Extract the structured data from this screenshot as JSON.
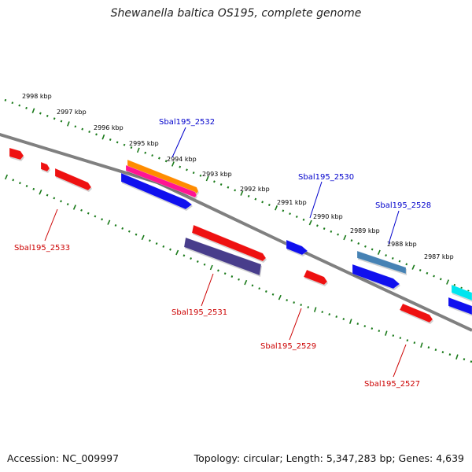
{
  "title": "Shewanella baltica OS195, complete genome",
  "footer": {
    "accession": "Accession: NC_009997",
    "summary": "Topology: circular; Length: 5,347,283 bp; Genes: 4,639"
  },
  "ruler_labels": [
    "2998 kbp",
    "2997 kbp",
    "2996 kbp",
    "2995 kbp",
    "2994 kbp",
    "2993 kbp",
    "2992 kbp",
    "2991 kbp",
    "2990 kbp",
    "2989 kbp",
    "2988 kbp",
    "2987 kbp"
  ],
  "gene_labels": {
    "top": [
      "Sbal195_2532",
      "Sbal195_2530",
      "Sbal195_2528"
    ],
    "bottom": [
      "Sbal195_2533",
      "Sbal195_2531",
      "Sbal195_2529",
      "Sbal195_2527"
    ]
  },
  "colors": {
    "backbone": "#808080",
    "ruler_ticks": "#1a7a1a",
    "top_label": "#0000cc",
    "bottom_label": "#cc0000",
    "red_gene": "#ee1111",
    "blue_gene": "#1010ee",
    "orange_gene": "#ff8c00",
    "magenta_gene": "#ff1493",
    "steelblue_gene": "#4682b4",
    "darkslate_gene": "#483d8b",
    "cyan_gene": "#00e5ee"
  }
}
